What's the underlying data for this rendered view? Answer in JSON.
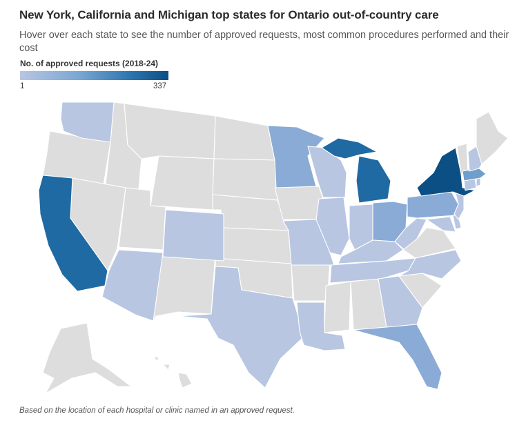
{
  "title": "New York, California and Michigan top states for Ontario out-of-country care",
  "subtitle": "Hover over each state to see the number of approved requests, most common procedures performed and their cost",
  "legend": {
    "title": "No. of approved requests (2018-24)",
    "min_label": "1",
    "max_label": "337",
    "min_value": 1,
    "max_value": 337,
    "min_color": "#b8c6e2",
    "max_color": "#0b4f84",
    "no_data_color": "#dddddd"
  },
  "footnote": "Based on the location of each hospital or clinic named in an approved request.",
  "chart_data": {
    "type": "choropleth",
    "title": "New York, California and Michigan top states for Ontario out-of-country care",
    "region": "United States",
    "scale": {
      "min": 1,
      "max": 337
    },
    "states_shaded": [
      {
        "state": "New York",
        "level": "highest"
      },
      {
        "state": "California",
        "level": "high"
      },
      {
        "state": "Michigan",
        "level": "high"
      },
      {
        "state": "Minnesota",
        "level": "medium"
      },
      {
        "state": "Ohio",
        "level": "medium"
      },
      {
        "state": "Pennsylvania",
        "level": "medium"
      },
      {
        "state": "Massachusetts",
        "level": "medium"
      },
      {
        "state": "Florida",
        "level": "medium"
      },
      {
        "state": "Washington",
        "level": "low"
      },
      {
        "state": "Colorado",
        "level": "low"
      },
      {
        "state": "Arizona",
        "level": "low"
      },
      {
        "state": "Texas",
        "level": "low"
      },
      {
        "state": "Louisiana",
        "level": "low"
      },
      {
        "state": "Wisconsin",
        "level": "low"
      },
      {
        "state": "Illinois",
        "level": "low"
      },
      {
        "state": "Indiana",
        "level": "low"
      },
      {
        "state": "Missouri",
        "level": "low"
      },
      {
        "state": "Kentucky",
        "level": "low"
      },
      {
        "state": "Tennessee",
        "level": "low"
      },
      {
        "state": "West Virginia",
        "level": "low"
      },
      {
        "state": "North Carolina",
        "level": "low"
      },
      {
        "state": "Georgia",
        "level": "low"
      },
      {
        "state": "Maryland",
        "level": "low"
      },
      {
        "state": "New Jersey",
        "level": "low"
      },
      {
        "state": "Connecticut",
        "level": "low"
      },
      {
        "state": "Rhode Island",
        "level": "low"
      },
      {
        "state": "New Hampshire",
        "level": "low"
      },
      {
        "state": "Delaware",
        "level": "low"
      },
      {
        "state": "Virginia",
        "level": "low"
      }
    ]
  }
}
